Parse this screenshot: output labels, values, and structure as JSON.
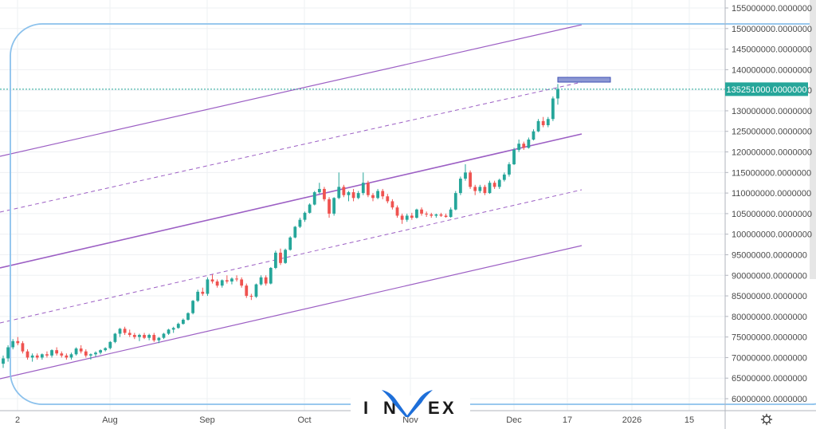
{
  "chart_data": {
    "type": "candlestick",
    "y_axis": {
      "ticks": [
        "60000000.0000000",
        "65000000.0000000",
        "70000000.0000000",
        "75000000.0000000",
        "80000000.0000000",
        "85000000.0000000",
        "90000000.0000000",
        "95000000.0000000",
        "100000000.0000000",
        "105000000.0000000",
        "110000000.0000000",
        "115000000.0000000",
        "120000000.0000000",
        "125000000.0000000",
        "130000000.0000000",
        "135000000.0000000",
        "140000000.0000000",
        "145000000.0000000",
        "150000000.0000000",
        "155000000.0000000"
      ],
      "tick_values": [
        60000000,
        65000000,
        70000000,
        75000000,
        80000000,
        85000000,
        90000000,
        95000000,
        100000000,
        105000000,
        110000000,
        115000000,
        120000000,
        125000000,
        130000000,
        135000000,
        140000000,
        145000000,
        150000000,
        155000000
      ],
      "range": [
        58500000,
        157000000
      ]
    },
    "x_axis": {
      "labels": [
        "2",
        "Aug",
        "Sep",
        "Oct",
        "Nov",
        "Dec",
        "17",
        "2026",
        "15"
      ]
    },
    "current_price_label": "135251000.0000000",
    "current_price": 135251000,
    "candle_color_up": "#26a69a",
    "candle_color_down": "#ef5350",
    "candles_ohlc_millions": [
      [
        68.5,
        70.5,
        67.5,
        69.8
      ],
      [
        69.8,
        73.0,
        69.0,
        72.5
      ],
      [
        72.5,
        74.5,
        72.0,
        74.0
      ],
      [
        74.0,
        75.0,
        73.0,
        73.5
      ],
      [
        73.5,
        74.0,
        71.0,
        71.5
      ],
      [
        71.5,
        72.0,
        69.5,
        70.0
      ],
      [
        70.0,
        71.0,
        69.0,
        70.5
      ],
      [
        70.5,
        71.0,
        69.5,
        70.0
      ],
      [
        70.0,
        71.0,
        69.5,
        70.8
      ],
      [
        70.8,
        71.5,
        70.0,
        70.5
      ],
      [
        70.5,
        72.0,
        70.0,
        71.8
      ],
      [
        71.8,
        72.5,
        70.5,
        71.0
      ],
      [
        71.0,
        71.5,
        70.0,
        70.5
      ],
      [
        70.5,
        71.0,
        69.5,
        70.0
      ],
      [
        70.0,
        71.2,
        69.5,
        70.8
      ],
      [
        70.8,
        72.5,
        70.5,
        72.2
      ],
      [
        72.2,
        73.0,
        71.0,
        71.5
      ],
      [
        71.5,
        72.0,
        70.0,
        70.5
      ],
      [
        70.5,
        71.0,
        69.5,
        70.8
      ],
      [
        70.8,
        71.5,
        70.2,
        71.2
      ],
      [
        71.2,
        72.0,
        70.8,
        71.8
      ],
      [
        71.8,
        72.5,
        71.5,
        72.3
      ],
      [
        72.3,
        74.0,
        72.0,
        73.8
      ],
      [
        73.8,
        76.0,
        73.5,
        75.8
      ],
      [
        75.8,
        77.2,
        75.0,
        77.0
      ],
      [
        77.0,
        77.5,
        75.5,
        76.0
      ],
      [
        76.0,
        76.8,
        75.0,
        75.5
      ],
      [
        75.5,
        76.0,
        74.5,
        75.0
      ],
      [
        75.0,
        75.8,
        74.0,
        75.5
      ],
      [
        75.5,
        76.0,
        74.5,
        74.8
      ],
      [
        74.8,
        75.8,
        74.2,
        75.5
      ],
      [
        75.5,
        76.0,
        73.8,
        74.2
      ],
      [
        74.2,
        75.0,
        73.5,
        74.8
      ],
      [
        74.8,
        76.0,
        74.5,
        75.8
      ],
      [
        75.8,
        77.0,
        75.5,
        76.8
      ],
      [
        76.8,
        77.5,
        76.0,
        77.2
      ],
      [
        77.2,
        78.5,
        77.0,
        78.2
      ],
      [
        78.2,
        79.5,
        78.0,
        79.2
      ],
      [
        79.2,
        81.0,
        79.0,
        80.8
      ],
      [
        80.8,
        84.0,
        80.5,
        83.8
      ],
      [
        83.8,
        86.5,
        83.5,
        86.0
      ],
      [
        86.0,
        87.0,
        85.0,
        85.5
      ],
      [
        85.5,
        89.5,
        85.0,
        89.0
      ],
      [
        89.0,
        90.2,
        88.0,
        88.5
      ],
      [
        88.5,
        89.0,
        87.0,
        87.5
      ],
      [
        87.5,
        89.0,
        87.0,
        88.8
      ],
      [
        88.8,
        90.0,
        88.0,
        88.5
      ],
      [
        88.5,
        89.5,
        87.8,
        89.2
      ],
      [
        89.2,
        90.0,
        88.5,
        89.0
      ],
      [
        89.0,
        89.5,
        87.0,
        87.5
      ],
      [
        87.5,
        88.0,
        84.5,
        85.0
      ],
      [
        85.0,
        85.5,
        84.0,
        84.8
      ],
      [
        84.8,
        88.0,
        84.5,
        87.8
      ],
      [
        87.8,
        90.0,
        87.5,
        89.5
      ],
      [
        89.5,
        90.0,
        87.5,
        88.0
      ],
      [
        88.0,
        92.0,
        87.8,
        91.8
      ],
      [
        91.8,
        96.0,
        91.5,
        95.5
      ],
      [
        95.5,
        96.5,
        92.5,
        93.0
      ],
      [
        93.0,
        96.5,
        92.8,
        96.2
      ],
      [
        96.2,
        99.5,
        96.0,
        99.2
      ],
      [
        99.2,
        102.0,
        99.0,
        101.8
      ],
      [
        101.8,
        104.0,
        101.5,
        103.5
      ],
      [
        103.5,
        105.5,
        103.0,
        105.2
      ],
      [
        105.2,
        107.5,
        105.0,
        107.2
      ],
      [
        107.2,
        110.5,
        107.0,
        110.2
      ],
      [
        110.2,
        112.5,
        109.8,
        111.0
      ],
      [
        111.0,
        111.5,
        108.0,
        108.5
      ],
      [
        108.5,
        109.0,
        104.0,
        105.0
      ],
      [
        105.0,
        109.0,
        104.5,
        108.8
      ],
      [
        108.8,
        115.0,
        108.5,
        111.5
      ],
      [
        111.5,
        112.0,
        109.0,
        109.5
      ],
      [
        109.5,
        110.5,
        108.0,
        110.2
      ],
      [
        110.2,
        111.0,
        108.0,
        108.8
      ],
      [
        108.8,
        110.5,
        108.5,
        110.0
      ],
      [
        110.0,
        115.0,
        109.5,
        112.5
      ],
      [
        112.5,
        113.0,
        109.0,
        109.5
      ],
      [
        109.5,
        110.0,
        108.0,
        108.8
      ],
      [
        108.8,
        111.0,
        108.5,
        110.5
      ],
      [
        110.5,
        111.0,
        108.5,
        109.2
      ],
      [
        109.2,
        109.8,
        107.5,
        108.0
      ],
      [
        108.0,
        108.5,
        106.0,
        106.5
      ],
      [
        106.5,
        107.0,
        104.0,
        104.5
      ],
      [
        104.5,
        105.0,
        102.5,
        103.5
      ],
      [
        103.5,
        105.0,
        103.0,
        104.5
      ],
      [
        104.5,
        105.2,
        103.5,
        104.0
      ],
      [
        104.0,
        106.2,
        103.8,
        106.0
      ],
      [
        106.0,
        106.5,
        104.5,
        105.0
      ],
      [
        105.0,
        105.5,
        104.2,
        104.8
      ],
      [
        104.8,
        105.2,
        104.0,
        104.5
      ],
      [
        104.5,
        105.0,
        104.0,
        104.8
      ],
      [
        104.8,
        105.2,
        104.2,
        104.5
      ],
      [
        104.5,
        105.0,
        104.0,
        104.2
      ],
      [
        104.2,
        106.5,
        104.0,
        106.0
      ],
      [
        106.0,
        110.5,
        105.8,
        110.0
      ],
      [
        110.0,
        114.0,
        109.5,
        113.5
      ],
      [
        113.5,
        117.0,
        113.0,
        115.0
      ],
      [
        115.0,
        115.5,
        111.0,
        111.5
      ],
      [
        111.5,
        112.0,
        109.5,
        110.5
      ],
      [
        110.5,
        112.0,
        110.0,
        111.5
      ],
      [
        111.5,
        112.0,
        109.5,
        110.0
      ],
      [
        110.0,
        113.0,
        109.8,
        112.5
      ],
      [
        112.5,
        113.0,
        111.0,
        111.5
      ],
      [
        111.5,
        113.5,
        111.0,
        113.2
      ],
      [
        113.2,
        115.0,
        112.8,
        114.5
      ],
      [
        114.5,
        117.5,
        114.0,
        117.0
      ],
      [
        117.0,
        121.0,
        116.8,
        120.5
      ],
      [
        120.5,
        123.0,
        120.0,
        122.0
      ],
      [
        122.0,
        122.5,
        120.5,
        121.0
      ],
      [
        121.0,
        123.5,
        120.8,
        123.0
      ],
      [
        123.0,
        125.5,
        122.8,
        125.0
      ],
      [
        125.0,
        128.0,
        124.8,
        127.5
      ],
      [
        127.5,
        128.5,
        126.0,
        126.5
      ],
      [
        126.5,
        128.5,
        126.0,
        128.0
      ],
      [
        128.0,
        133.5,
        127.5,
        133.0
      ],
      [
        133.0,
        136.5,
        131.5,
        135.3
      ]
    ]
  }
}
